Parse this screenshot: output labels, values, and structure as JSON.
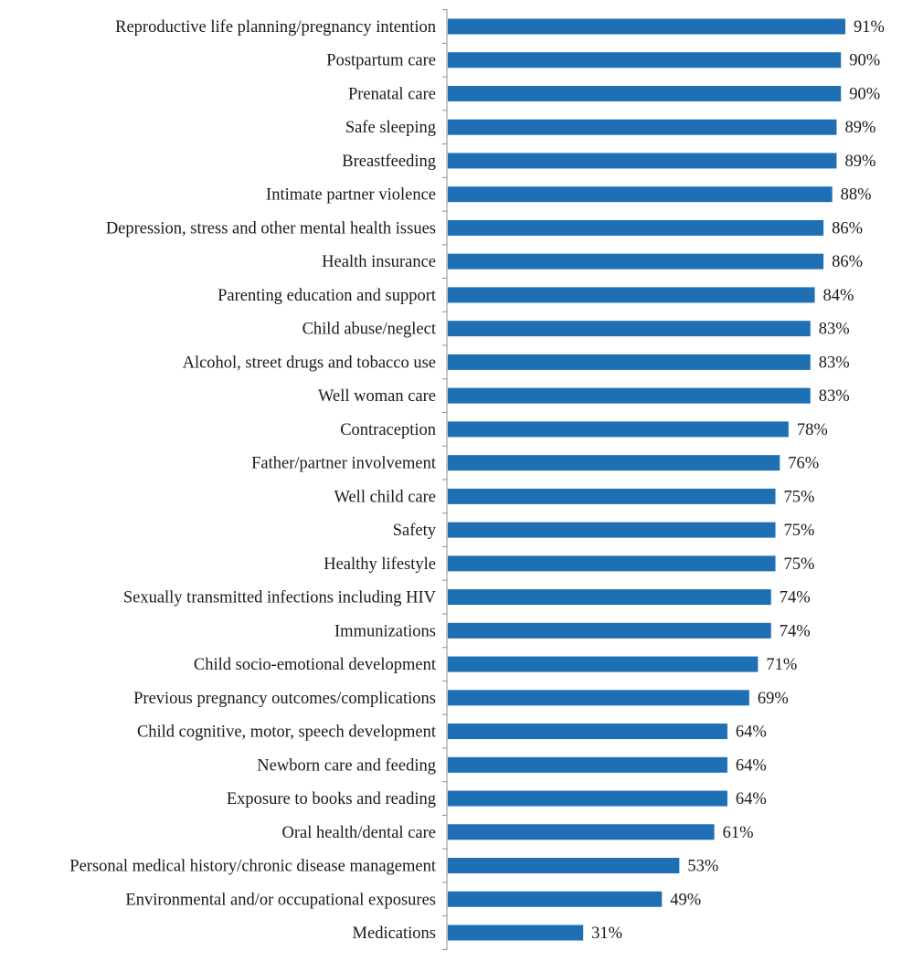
{
  "chart_data": {
    "type": "bar",
    "orientation": "horizontal",
    "categories": [
      "Reproductive life planning/pregnancy intention",
      "Postpartum care",
      "Prenatal care",
      "Safe sleeping",
      "Breastfeeding ",
      "Intimate partner violence",
      "Depression, stress and other mental health issues",
      "Health insurance",
      "Parenting education and support",
      "Child abuse/neglect",
      "Alcohol, street drugs and tobacco use ",
      "Well woman care",
      "Contraception",
      "Father/partner involvement",
      "Well child care",
      "Safety",
      "Healthy lifestyle",
      "Sexually transmitted infections including HIV",
      "Immunizations",
      "Child socio-emotional development",
      "Previous pregnancy outcomes/complications",
      "Child cognitive, motor, speech development",
      "Newborn care and feeding",
      "Exposure to books and reading",
      "Oral health/dental care",
      "Personal medical history/chronic disease management",
      "Environmental and/or occupational exposures",
      "Medications"
    ],
    "values": [
      91,
      90,
      90,
      89,
      89,
      88,
      86,
      86,
      84,
      83,
      83,
      83,
      78,
      76,
      75,
      75,
      75,
      74,
      74,
      71,
      69,
      64,
      64,
      64,
      61,
      53,
      49,
      31
    ],
    "value_labels": [
      "91%",
      "90%",
      "90%",
      "89%",
      "89%",
      "88%",
      "86%",
      "86%",
      "84%",
      "83%",
      "83%",
      "83%",
      "78%",
      "76%",
      "75%",
      "75%",
      "75%",
      "74%",
      "74%",
      "71%",
      "69%",
      "64%",
      "64%",
      "64%",
      "61%",
      "53%",
      "49%",
      "31%"
    ],
    "xlim": [
      0,
      100
    ],
    "bar_color": "#1f6fb5",
    "axis_color": "#8c8c8c",
    "grid": false,
    "legend": "none"
  }
}
